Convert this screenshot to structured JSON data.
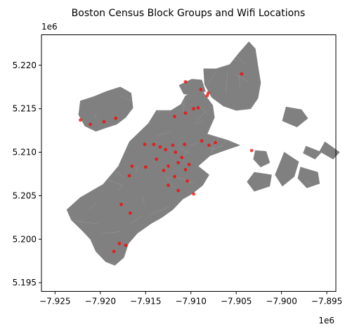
{
  "chart_data": {
    "type": "map",
    "title": "Boston Census Block Groups and Wifi Locations",
    "xlabel": "",
    "ylabel": "",
    "x_offset_label": "1e6",
    "y_offset_label": "1e6",
    "xlim": [
      -7.9265,
      -7.894
    ],
    "ylim": [
      5.194,
      5.2235
    ],
    "x_ticks": [
      -7.925,
      -7.92,
      -7.915,
      -7.91,
      -7.905,
      -7.9,
      -7.895
    ],
    "x_tick_labels": [
      "−7.925",
      "−7.920",
      "−7.915",
      "−7.910",
      "−7.905",
      "−7.900",
      "−7.895"
    ],
    "y_ticks": [
      5.195,
      5.2,
      5.205,
      5.21,
      5.215,
      5.22
    ],
    "y_tick_labels": [
      "5.195",
      "5.200",
      "5.205",
      "5.210",
      "5.215",
      "5.220"
    ],
    "grid": false,
    "legend": "none",
    "colors": {
      "block_groups": "#808080",
      "block_edges": "#9a9a9a",
      "wifi": "#ff0000"
    },
    "layers": [
      {
        "name": "block-groups",
        "polygons": [
          {
            "id": "mainland",
            "points": [
              [
                -7.9237,
                5.2034
              ],
              [
                -7.9222,
                5.2048
              ],
              [
                -7.9197,
                5.2063
              ],
              [
                -7.918,
                5.2084
              ],
              [
                -7.9168,
                5.2112
              ],
              [
                -7.9147,
                5.2133
              ],
              [
                -7.9138,
                5.2148
              ],
              [
                -7.9122,
                5.2148
              ],
              [
                -7.9111,
                5.2155
              ],
              [
                -7.9106,
                5.2165
              ],
              [
                -7.9088,
                5.2171
              ],
              [
                -7.9076,
                5.2154
              ],
              [
                -7.9074,
                5.214
              ],
              [
                -7.9082,
                5.2121
              ],
              [
                -7.906,
                5.2114
              ],
              [
                -7.9046,
                5.2108
              ],
              [
                -7.9063,
                5.2102
              ],
              [
                -7.9079,
                5.2096
              ],
              [
                -7.9092,
                5.2084
              ],
              [
                -7.908,
                5.2074
              ],
              [
                -7.9087,
                5.2062
              ],
              [
                -7.9099,
                5.2052
              ],
              [
                -7.9109,
                5.2046
              ],
              [
                -7.912,
                5.2034
              ],
              [
                -7.9132,
                5.2025
              ],
              [
                -7.9144,
                5.2018
              ],
              [
                -7.9159,
                5.2007
              ],
              [
                -7.9169,
                5.1995
              ],
              [
                -7.9174,
                5.1979
              ],
              [
                -7.9184,
                5.197
              ],
              [
                -7.9194,
                5.1974
              ],
              [
                -7.9205,
                5.1986
              ],
              [
                -7.9211,
                5.2
              ],
              [
                -7.922,
                5.201
              ],
              [
                -7.9232,
                5.2022
              ]
            ]
          },
          {
            "id": "allston-brighton",
            "points": [
              [
                -7.9222,
                5.2159
              ],
              [
                -7.9207,
                5.2164
              ],
              [
                -7.9193,
                5.217
              ],
              [
                -7.9178,
                5.2175
              ],
              [
                -7.9166,
                5.2168
              ],
              [
                -7.9164,
                5.2151
              ],
              [
                -7.9172,
                5.214
              ],
              [
                -7.9182,
                5.2132
              ],
              [
                -7.9194,
                5.2128
              ],
              [
                -7.9205,
                5.2124
              ],
              [
                -7.9217,
                5.213
              ],
              [
                -7.9224,
                5.2143
              ]
            ]
          },
          {
            "id": "charlestown",
            "points": [
              [
                -7.9113,
                5.2177
              ],
              [
                -7.9099,
                5.2184
              ],
              [
                -7.9088,
                5.2183
              ],
              [
                -7.9084,
                5.217
              ],
              [
                -7.9094,
                5.2165
              ],
              [
                -7.9108,
                5.2167
              ]
            ]
          },
          {
            "id": "east-boston",
            "points": [
              [
                -7.9086,
                5.2196
              ],
              [
                -7.9072,
                5.2196
              ],
              [
                -7.9057,
                5.2201
              ],
              [
                -7.9047,
                5.2214
              ],
              [
                -7.9036,
                5.2227
              ],
              [
                -7.9029,
                5.2219
              ],
              [
                -7.9026,
                5.2199
              ],
              [
                -7.9023,
                5.218
              ],
              [
                -7.9026,
                5.2162
              ],
              [
                -7.9034,
                5.215
              ],
              [
                -7.905,
                5.2148
              ],
              [
                -7.9064,
                5.2153
              ],
              [
                -7.9077,
                5.2163
              ],
              [
                -7.9085,
                5.2178
              ]
            ]
          },
          {
            "id": "island-1",
            "points": [
              [
                -7.8995,
                5.2152
              ],
              [
                -7.8978,
                5.2149
              ],
              [
                -7.8971,
                5.2139
              ],
              [
                -7.8983,
                5.2129
              ],
              [
                -7.8999,
                5.2136
              ]
            ]
          },
          {
            "id": "island-2",
            "points": [
              [
                -7.9029,
                5.2102
              ],
              [
                -7.9017,
                5.2101
              ],
              [
                -7.9013,
                5.2088
              ],
              [
                -7.9023,
                5.2083
              ],
              [
                -7.9031,
                5.2092
              ]
            ]
          },
          {
            "id": "island-3",
            "points": [
              [
                -7.903,
                5.2077
              ],
              [
                -7.9011,
                5.2074
              ],
              [
                -7.9013,
                5.2061
              ],
              [
                -7.903,
                5.2055
              ],
              [
                -7.9038,
                5.2066
              ]
            ]
          },
          {
            "id": "island-4",
            "points": [
              [
                -7.8997,
                5.21
              ],
              [
                -7.8981,
                5.2089
              ],
              [
                -7.8986,
                5.2072
              ],
              [
                -7.8999,
                5.2061
              ],
              [
                -7.9007,
                5.2074
              ]
            ]
          },
          {
            "id": "island-5",
            "points": [
              [
                -7.8979,
                5.2083
              ],
              [
                -7.896,
                5.2077
              ],
              [
                -7.8958,
                5.2064
              ],
              [
                -7.8972,
                5.2059
              ],
              [
                -7.8982,
                5.207
              ]
            ]
          },
          {
            "id": "island-6",
            "points": [
              [
                -7.8973,
                5.2107
              ],
              [
                -7.8956,
                5.21
              ],
              [
                -7.8963,
                5.2092
              ],
              [
                -7.8976,
                5.2099
              ]
            ]
          },
          {
            "id": "island-7",
            "points": [
              [
                -7.8952,
                5.2112
              ],
              [
                -7.8936,
                5.21
              ],
              [
                -7.8943,
                5.2092
              ],
              [
                -7.8958,
                5.2101
              ]
            ]
          }
        ]
      },
      {
        "name": "wifi-locations",
        "points": [
          [
            -7.9106,
            5.2181
          ],
          [
            -7.9089,
            5.2172
          ],
          [
            -7.9082,
            5.2165
          ],
          [
            -7.9081,
            5.2168
          ],
          [
            -7.9044,
            5.219
          ],
          [
            -7.9092,
            5.2151
          ],
          [
            -7.9097,
            5.215
          ],
          [
            -7.9106,
            5.2145
          ],
          [
            -7.9118,
            5.2141
          ],
          [
            -7.9196,
            5.2135
          ],
          [
            -7.9222,
            5.2137
          ],
          [
            -7.9211,
            5.2132
          ],
          [
            -7.9183,
            5.2139
          ],
          [
            -7.9151,
            5.2109
          ],
          [
            -7.9141,
            5.2109
          ],
          [
            -7.9134,
            5.2106
          ],
          [
            -7.9128,
            5.2103
          ],
          [
            -7.912,
            5.2108
          ],
          [
            -7.9117,
            5.21
          ],
          [
            -7.9107,
            5.2109
          ],
          [
            -7.911,
            5.2094
          ],
          [
            -7.9102,
            5.2086
          ],
          [
            -7.9106,
            5.208
          ],
          [
            -7.9114,
            5.2088
          ],
          [
            -7.9125,
            5.2084
          ],
          [
            -7.9138,
            5.2092
          ],
          [
            -7.913,
            5.2079
          ],
          [
            -7.9118,
            5.2072
          ],
          [
            -7.9125,
            5.2062
          ],
          [
            -7.9104,
            5.2067
          ],
          [
            -7.9097,
            5.2052
          ],
          [
            -7.9114,
            5.2056
          ],
          [
            -7.915,
            5.2083
          ],
          [
            -7.9165,
            5.2084
          ],
          [
            -7.9168,
            5.2073
          ],
          [
            -7.9177,
            5.204
          ],
          [
            -7.9179,
            5.1995
          ],
          [
            -7.9172,
            5.1993
          ],
          [
            -7.9185,
            5.1986
          ],
          [
            -7.9167,
            5.203
          ],
          [
            -7.9073,
            5.2111
          ],
          [
            -7.908,
            5.2108
          ],
          [
            -7.9088,
            5.2113
          ],
          [
            -7.9033,
            5.2102
          ]
        ]
      }
    ]
  }
}
